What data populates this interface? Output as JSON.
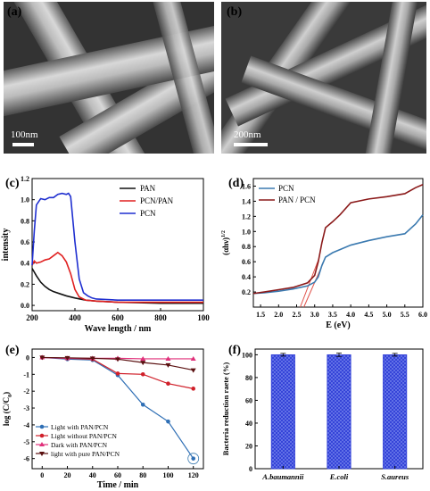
{
  "panels": {
    "a": {
      "label": "(a)",
      "scale": "100nm"
    },
    "b": {
      "label": "(b)",
      "scale": "200nm"
    },
    "c": {
      "label": "(c)"
    },
    "d": {
      "label": "(d)"
    },
    "e": {
      "label": "(e)"
    },
    "f": {
      "label": "(f)"
    }
  },
  "chart_data": [
    {
      "id": "c",
      "type": "line",
      "xlabel": "Wave length / nm",
      "ylabel": "intensity",
      "xlim": [
        200,
        1000
      ],
      "ylim": [
        -0.05,
        1.2
      ],
      "xticks": [
        "200",
        "400",
        "600",
        "800",
        "100"
      ],
      "yticks": [
        "0.0",
        "0.2",
        "0.4",
        "0.6",
        "0.8",
        "1.0",
        "1.2"
      ],
      "legend_position": "top-right",
      "series": [
        {
          "name": "PAN",
          "color": "#111111",
          "x": [
            200,
            220,
            240,
            260,
            280,
            300,
            330,
            360,
            400,
            450,
            500,
            600,
            700,
            800,
            1000
          ],
          "y": [
            0.35,
            0.28,
            0.22,
            0.18,
            0.15,
            0.13,
            0.11,
            0.09,
            0.07,
            0.05,
            0.04,
            0.03,
            0.025,
            0.02,
            0.02
          ]
        },
        {
          "name": "PCN/PAN",
          "color": "#e02020",
          "x": [
            200,
            210,
            220,
            240,
            260,
            280,
            300,
            320,
            340,
            360,
            380,
            400,
            420,
            450,
            500,
            600,
            700,
            800,
            1000
          ],
          "y": [
            0.38,
            0.42,
            0.4,
            0.41,
            0.43,
            0.44,
            0.47,
            0.5,
            0.47,
            0.41,
            0.3,
            0.15,
            0.08,
            0.05,
            0.04,
            0.03,
            0.03,
            0.03,
            0.03
          ]
        },
        {
          "name": "PCN",
          "color": "#1f2fd0",
          "x": [
            200,
            210,
            220,
            240,
            260,
            280,
            300,
            320,
            340,
            360,
            370,
            380,
            400,
            420,
            440,
            460,
            480,
            500,
            600,
            700,
            800,
            1000
          ],
          "y": [
            0.38,
            0.7,
            0.95,
            1.01,
            1.0,
            1.02,
            1.02,
            1.05,
            1.06,
            1.05,
            1.06,
            1.03,
            0.6,
            0.25,
            0.12,
            0.09,
            0.07,
            0.06,
            0.05,
            0.05,
            0.05,
            0.05
          ]
        }
      ]
    },
    {
      "id": "d",
      "type": "line",
      "xlabel": "E (eV)",
      "ylabel": "(αhν)",
      "ylabel_sup": "1/2",
      "xlim": [
        1.3,
        6.0
      ],
      "ylim": [
        0.0,
        1.7
      ],
      "xticks": [
        "1.5",
        "2.0",
        "2.5",
        "3.0",
        "3.5",
        "4.0",
        "4.5",
        "5.0",
        "5.5",
        "6.0"
      ],
      "yticks": [
        "0.2",
        "0.4",
        "0.6",
        "0.8",
        "1.0",
        "1.2",
        "1.4",
        "1.6"
      ],
      "legend_position": "top-left",
      "series": [
        {
          "name": "PCN",
          "color": "#3b7ab0",
          "x": [
            1.3,
            1.6,
            2.0,
            2.4,
            2.8,
            3.0,
            3.1,
            3.2,
            3.3,
            3.5,
            3.7,
            4.0,
            4.5,
            5.0,
            5.5,
            5.8,
            6.0
          ],
          "y": [
            0.18,
            0.19,
            0.21,
            0.24,
            0.28,
            0.33,
            0.4,
            0.55,
            0.66,
            0.72,
            0.76,
            0.82,
            0.88,
            0.93,
            0.97,
            1.1,
            1.22
          ]
        },
        {
          "name": "PAN / PCN",
          "color": "#8b1a1a",
          "x": [
            1.3,
            1.6,
            2.0,
            2.4,
            2.8,
            3.0,
            3.1,
            3.2,
            3.3,
            3.5,
            3.7,
            4.0,
            4.5,
            5.0,
            5.5,
            5.8,
            6.0
          ],
          "y": [
            0.18,
            0.2,
            0.23,
            0.26,
            0.32,
            0.42,
            0.6,
            0.85,
            1.05,
            1.13,
            1.22,
            1.38,
            1.43,
            1.46,
            1.5,
            1.58,
            1.62
          ]
        }
      ],
      "annotations": [
        {
          "color": "#e0524a",
          "x": [
            2.6,
            3.1
          ],
          "y": [
            0.0,
            0.62
          ]
        },
        {
          "color": "#e0524a",
          "x": [
            2.7,
            3.25
          ],
          "y": [
            0.0,
            0.6
          ]
        }
      ]
    },
    {
      "id": "e",
      "type": "line",
      "xlabel": "Time / min",
      "ylabel": "log (C/C",
      "ylabel_sub": "0",
      "ylabel_end": ")",
      "xlim": [
        -8,
        128
      ],
      "ylim": [
        -6.6,
        0.5
      ],
      "xticks": [
        "0",
        "20",
        "40",
        "60",
        "80",
        "100",
        "120"
      ],
      "yticks": [
        "0",
        "-1",
        "-2",
        "-3",
        "-4",
        "-5",
        "-6"
      ],
      "legend_position": "bottom-left",
      "series": [
        {
          "name": "Light with PAN/PCN",
          "color": "#2f6fb5",
          "marker": "circle",
          "x": [
            0,
            20,
            40,
            60,
            80,
            100,
            120
          ],
          "y": [
            0,
            -0.1,
            -0.15,
            -1.05,
            -2.8,
            -3.8,
            -6.0
          ]
        },
        {
          "name": "Light without PAN/PCN",
          "color": "#d0202a",
          "marker": "circle",
          "x": [
            0,
            20,
            40,
            60,
            80,
            100,
            120
          ],
          "y": [
            0,
            -0.05,
            -0.1,
            -0.95,
            -1.0,
            -1.55,
            -1.85
          ]
        },
        {
          "name": "Dark with PAN/PCN",
          "color": "#e0307a",
          "marker": "triangle",
          "x": [
            0,
            20,
            40,
            60,
            80,
            100,
            120
          ],
          "y": [
            0,
            -0.05,
            -0.05,
            -0.05,
            -0.08,
            -0.08,
            -0.08
          ]
        },
        {
          "name": "light with pure PAN/PCN",
          "color": "#5a1010",
          "marker": "triangle-down",
          "x": [
            0,
            20,
            40,
            60,
            80,
            100,
            120
          ],
          "y": [
            0,
            -0.02,
            -0.05,
            -0.1,
            -0.3,
            -0.45,
            -0.75
          ]
        }
      ]
    },
    {
      "id": "f",
      "type": "bar",
      "ylabel": "Bacteria reduction raete (%)",
      "categories": [
        "A.baumannii",
        "E.coli",
        "S.aureus"
      ],
      "values": [
        100,
        100,
        100
      ],
      "errors": [
        1.2,
        1.5,
        1.2
      ],
      "ylim": [
        0,
        105
      ],
      "yticks": [
        "0",
        "20",
        "40",
        "60",
        "80",
        "100"
      ],
      "color": "#2f3ed6"
    }
  ]
}
